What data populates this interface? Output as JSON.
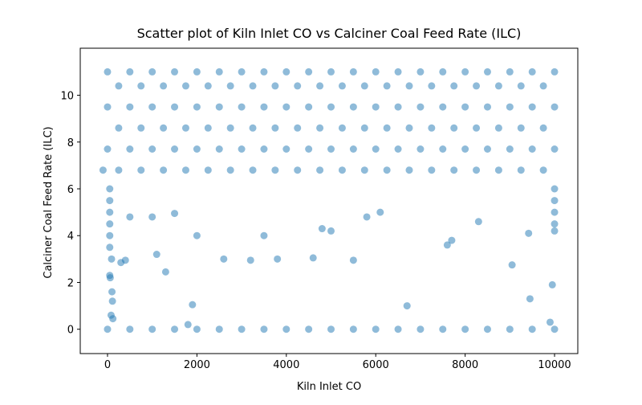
{
  "chart_data": {
    "type": "scatter",
    "title": "Scatter plot of Kiln Inlet CO vs Calciner Coal Feed Rate (ILC)",
    "x_label": "Kiln Inlet CO",
    "y_label": "Calciner Coal Feed Rate (ILC)",
    "color": "#1f77b4",
    "alpha": 0.5,
    "xlim": [
      -610,
      10520
    ],
    "ylim": [
      -1.04,
      12.01
    ],
    "xticks": [
      0,
      2000,
      4000,
      6000,
      8000,
      10000
    ],
    "yticks": [
      0,
      2,
      4,
      6,
      8,
      10
    ],
    "x": [
      0,
      500,
      1000,
      1500,
      2000,
      2500,
      3000,
      3500,
      4000,
      4500,
      5000,
      5500,
      6000,
      6500,
      7000,
      7500,
      8000,
      8500,
      9000,
      9500,
      10000,
      0,
      500,
      1000,
      1500,
      2000,
      2500,
      3000,
      3500,
      4000,
      4500,
      5000,
      5500,
      6000,
      6500,
      7000,
      7500,
      8000,
      8500,
      9000,
      9500,
      10000,
      250,
      750,
      1250,
      1750,
      2250,
      2750,
      3250,
      3750,
      4250,
      4750,
      5250,
      5750,
      6250,
      6750,
      7250,
      7750,
      8250,
      8750,
      9250,
      9750,
      0,
      500,
      1000,
      1500,
      2000,
      2500,
      3000,
      3500,
      4000,
      4500,
      5000,
      5500,
      6000,
      6500,
      7000,
      7500,
      8000,
      8500,
      9000,
      9500,
      10000,
      250,
      750,
      1250,
      1750,
      2250,
      2750,
      3250,
      3750,
      4250,
      4750,
      5250,
      5750,
      6250,
      6750,
      7250,
      7750,
      8250,
      8750,
      9250,
      9750,
      0,
      500,
      1000,
      1500,
      2000,
      2500,
      3000,
      3500,
      4000,
      4500,
      5000,
      5500,
      6000,
      6500,
      7000,
      7500,
      8000,
      8500,
      9000,
      9500,
      10000,
      250,
      750,
      1250,
      1750,
      2250,
      2750,
      3250,
      3750,
      4250,
      4750,
      5250,
      5750,
      6250,
      6750,
      7250,
      7750,
      8250,
      8750,
      9250,
      9750,
      -100,
      50,
      60,
      80,
      100,
      110,
      120,
      90,
      300,
      400,
      1100,
      1300,
      1000,
      1900,
      1800,
      2600,
      3200,
      3800,
      4600,
      5500,
      6700,
      7600,
      9050,
      9450,
      9900,
      9950,
      9420,
      10000,
      8300,
      7700,
      2000,
      1500,
      500,
      4800,
      6100,
      3500,
      5000,
      5800,
      50,
      50,
      50,
      50,
      50,
      50,
      10000,
      10000,
      10000,
      10000
    ],
    "values": [
      11,
      11,
      11,
      11,
      11,
      11,
      11,
      11,
      11,
      11,
      11,
      11,
      11,
      11,
      11,
      11,
      11,
      11,
      11,
      11,
      11,
      0,
      0,
      0,
      0,
      0,
      0,
      0,
      0,
      0,
      0,
      0,
      0,
      0,
      0,
      0,
      0,
      0,
      0,
      0,
      0,
      0,
      10.4,
      10.4,
      10.4,
      10.4,
      10.4,
      10.4,
      10.4,
      10.4,
      10.4,
      10.4,
      10.4,
      10.4,
      10.4,
      10.4,
      10.4,
      10.4,
      10.4,
      10.4,
      10.4,
      10.4,
      9.5,
      9.5,
      9.5,
      9.5,
      9.5,
      9.5,
      9.5,
      9.5,
      9.5,
      9.5,
      9.5,
      9.5,
      9.5,
      9.5,
      9.5,
      9.5,
      9.5,
      9.5,
      9.5,
      9.5,
      9.5,
      8.6,
      8.6,
      8.6,
      8.6,
      8.6,
      8.6,
      8.6,
      8.6,
      8.6,
      8.6,
      8.6,
      8.6,
      8.6,
      8.6,
      8.6,
      8.6,
      8.6,
      8.6,
      8.6,
      8.6,
      7.7,
      7.7,
      7.7,
      7.7,
      7.7,
      7.7,
      7.7,
      7.7,
      7.7,
      7.7,
      7.7,
      7.7,
      7.7,
      7.7,
      7.7,
      7.7,
      7.7,
      7.7,
      7.7,
      7.7,
      7.7,
      6.8,
      6.8,
      6.8,
      6.8,
      6.8,
      6.8,
      6.8,
      6.8,
      6.8,
      6.8,
      6.8,
      6.8,
      6.8,
      6.8,
      6.8,
      6.8,
      6.8,
      6.8,
      6.8,
      6.8,
      6.8,
      2.3,
      2.2,
      0.6,
      1.6,
      1.2,
      0.45,
      3.0,
      2.85,
      2.95,
      3.2,
      2.45,
      4.8,
      1.05,
      0.2,
      3.0,
      2.95,
      3.0,
      3.05,
      2.95,
      1.0,
      3.6,
      2.75,
      1.3,
      0.3,
      1.9,
      4.1,
      4.2,
      4.6,
      3.8,
      4.0,
      4.95,
      4.8,
      4.3,
      5.0,
      4.0,
      4.2,
      4.8,
      3.5,
      4.0,
      4.5,
      5.0,
      5.5,
      6.0,
      4.5,
      5.0,
      5.5,
      6.0
    ]
  }
}
